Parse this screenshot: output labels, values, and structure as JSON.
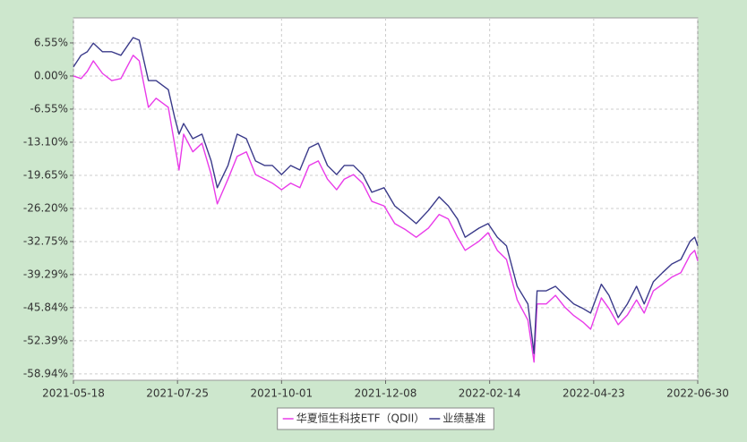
{
  "chart_data": {
    "type": "line",
    "x": [
      "2021-05-18",
      "2021-05-23",
      "2021-05-27",
      "2021-05-31",
      "2021-06-06",
      "2021-06-12",
      "2021-06-18",
      "2021-06-26",
      "2021-06-30",
      "2021-07-06",
      "2021-07-11",
      "2021-07-19",
      "2021-07-23",
      "2021-07-26",
      "2021-07-29",
      "2021-08-04",
      "2021-08-10",
      "2021-08-16",
      "2021-08-20",
      "2021-08-27",
      "2021-09-02",
      "2021-09-08",
      "2021-09-14",
      "2021-09-20",
      "2021-09-25",
      "2021-10-01",
      "2021-10-07",
      "2021-10-13",
      "2021-10-19",
      "2021-10-25",
      "2021-10-31",
      "2021-11-06",
      "2021-11-11",
      "2021-11-17",
      "2021-11-23",
      "2021-11-29",
      "2021-12-07",
      "2021-12-14",
      "2021-12-21",
      "2021-12-28",
      "2022-01-05",
      "2022-01-12",
      "2022-01-18",
      "2022-01-24",
      "2022-01-29",
      "2022-02-07",
      "2022-02-13",
      "2022-02-19",
      "2022-02-25",
      "2022-03-04",
      "2022-03-11",
      "2022-03-15",
      "2022-03-17",
      "2022-03-23",
      "2022-03-29",
      "2022-04-04",
      "2022-04-10",
      "2022-04-16",
      "2022-04-21",
      "2022-04-28",
      "2022-05-03",
      "2022-05-09",
      "2022-05-15",
      "2022-05-21",
      "2022-05-26",
      "2022-06-01",
      "2022-06-07",
      "2022-06-13",
      "2022-06-19",
      "2022-06-25",
      "2022-06-28",
      "2022-06-30"
    ],
    "series": [
      {
        "name": "华夏恒生科技ETF（QDII）",
        "color": "#e93be9",
        "values": [
          0,
          -0.5,
          0.9,
          3.0,
          0.5,
          -0.9,
          -0.5,
          4.1,
          3.0,
          -6.2,
          -4.4,
          -6.2,
          -13.3,
          -18.6,
          -11.5,
          -15.0,
          -13.3,
          -19.5,
          -25.3,
          -20.4,
          -15.9,
          -15.0,
          -19.5,
          -20.4,
          -21.2,
          -22.5,
          -21.2,
          -22.1,
          -17.7,
          -16.8,
          -20.4,
          -22.5,
          -20.4,
          -19.5,
          -21.2,
          -24.8,
          -25.7,
          -29.2,
          -30.4,
          -31.9,
          -30.1,
          -27.4,
          -28.3,
          -31.9,
          -34.5,
          -32.7,
          -31.0,
          -34.5,
          -36.3,
          -44.3,
          -48.3,
          -56.6,
          -45.1,
          -45.1,
          -43.4,
          -45.7,
          -47.4,
          -48.7,
          -50.1,
          -43.9,
          -46.0,
          -49.2,
          -47.3,
          -44.3,
          -46.9,
          -42.5,
          -41.2,
          -39.8,
          -38.9,
          -35.4,
          -34.5,
          -36.6
        ]
      },
      {
        "name": "业绩基准",
        "color": "#3a3a8a",
        "values": [
          1.8,
          4.1,
          4.8,
          6.5,
          4.8,
          4.8,
          4.1,
          7.6,
          7.1,
          -0.9,
          -0.9,
          -2.7,
          -8.0,
          -11.5,
          -9.4,
          -12.4,
          -11.5,
          -16.8,
          -22.1,
          -17.7,
          -11.5,
          -12.4,
          -16.8,
          -17.7,
          -17.7,
          -19.5,
          -17.7,
          -18.6,
          -14.2,
          -13.3,
          -17.7,
          -19.5,
          -17.7,
          -17.7,
          -19.5,
          -23.0,
          -22.1,
          -25.7,
          -27.4,
          -29.2,
          -26.6,
          -23.9,
          -25.7,
          -28.3,
          -31.9,
          -30.1,
          -29.2,
          -31.9,
          -33.6,
          -41.6,
          -45.1,
          -54.9,
          -42.5,
          -42.5,
          -41.6,
          -43.4,
          -45.1,
          -46.0,
          -46.9,
          -41.2,
          -43.4,
          -47.8,
          -45.1,
          -41.6,
          -45.1,
          -40.7,
          -38.9,
          -37.2,
          -36.3,
          -32.7,
          -31.9,
          -33.6
        ]
      }
    ],
    "xlim": [
      "2021-05-18",
      "2022-06-30"
    ],
    "xticks": [
      "2021-05-18",
      "2021-07-25",
      "2021-10-01",
      "2021-12-08",
      "2022-02-14",
      "2022-04-23",
      "2022-06-30"
    ],
    "ylim": [
      -60.2,
      11.5
    ],
    "yticks": [
      {
        "value": 6.55,
        "label": "6.55%"
      },
      {
        "value": 0,
        "label": "0.00%"
      },
      {
        "value": -6.55,
        "label": "-6.55%"
      },
      {
        "value": -13.1,
        "label": "-13.10%"
      },
      {
        "value": -19.65,
        "label": "-19.65%"
      },
      {
        "value": -26.2,
        "label": "-26.20%"
      },
      {
        "value": -32.75,
        "label": "-32.75%"
      },
      {
        "value": -39.29,
        "label": "-39.29%"
      },
      {
        "value": -45.84,
        "label": "-45.84%"
      },
      {
        "value": -52.39,
        "label": "-52.39%"
      },
      {
        "value": -58.94,
        "label": "-58.94%"
      }
    ],
    "grid": true,
    "legend": "bottom"
  }
}
